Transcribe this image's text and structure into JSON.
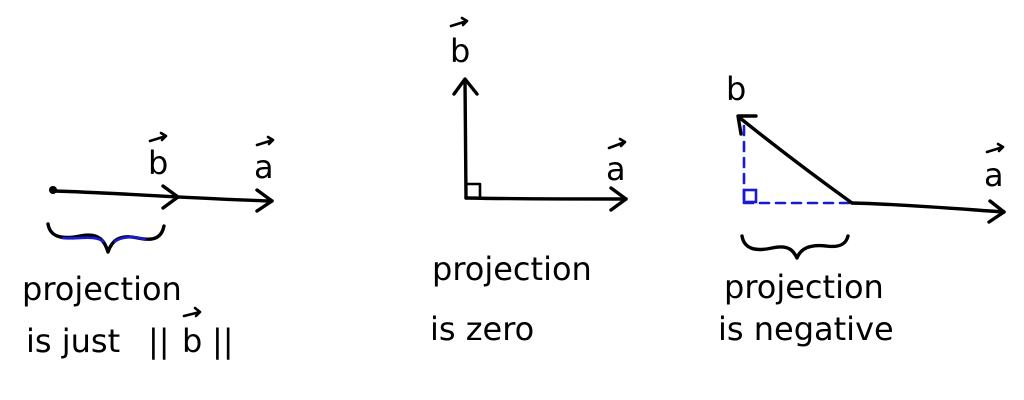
{
  "panels": [
    {
      "id": "parallel",
      "vector_labels": {
        "a": "a",
        "b": "b"
      },
      "caption_line1": "projection",
      "caption_line2_prefix": "is just ",
      "caption_line2_norm_open": "||",
      "caption_line2_vec": "b",
      "caption_line2_norm_close": "||"
    },
    {
      "id": "perpendicular",
      "vector_labels": {
        "a": "a",
        "b": "b"
      },
      "caption_line1": "projection",
      "caption_line2": "is  zero"
    },
    {
      "id": "obtuse",
      "vector_labels": {
        "a": "a",
        "b": "b"
      },
      "caption_line1": "projection",
      "caption_line2": "is negative"
    }
  ],
  "colors": {
    "ink": "#000000",
    "projection_blue": "#1a1ad6"
  }
}
